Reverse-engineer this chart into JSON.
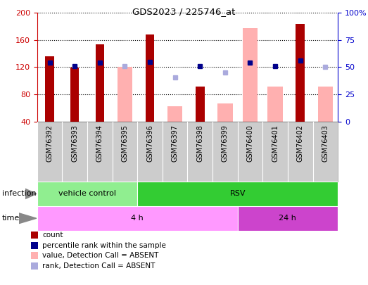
{
  "title": "GDS2023 / 225746_at",
  "samples": [
    "GSM76392",
    "GSM76393",
    "GSM76394",
    "GSM76395",
    "GSM76396",
    "GSM76397",
    "GSM76398",
    "GSM76399",
    "GSM76400",
    "GSM76401",
    "GSM76402",
    "GSM76403"
  ],
  "count_values": [
    136,
    119,
    153,
    null,
    168,
    null,
    91,
    null,
    null,
    null,
    183,
    null
  ],
  "absent_value_bars": [
    null,
    null,
    null,
    120,
    null,
    63,
    null,
    67,
    177,
    92,
    null,
    92
  ],
  "percentile_rank": [
    127,
    121,
    127,
    null,
    128,
    null,
    121,
    null,
    127,
    121,
    130,
    null
  ],
  "absent_rank": [
    null,
    null,
    null,
    121,
    null,
    105,
    null,
    112,
    null,
    null,
    null,
    120
  ],
  "ylim_left": [
    40,
    200
  ],
  "ylim_right": [
    0,
    100
  ],
  "yticks_left": [
    40,
    80,
    120,
    160,
    200
  ],
  "yticks_right": [
    0,
    25,
    50,
    75,
    100
  ],
  "infection_groups": [
    {
      "label": "vehicle control",
      "start": 0,
      "end": 4,
      "color": "#90ee90"
    },
    {
      "label": "RSV",
      "start": 4,
      "end": 12,
      "color": "#33cc33"
    }
  ],
  "time_groups": [
    {
      "label": "4 h",
      "start": 0,
      "end": 8,
      "color": "#ff99ff"
    },
    {
      "label": "24 h",
      "start": 8,
      "end": 12,
      "color": "#cc44cc"
    }
  ],
  "count_color": "#aa0000",
  "absent_value_color": "#ffb0b0",
  "percentile_color": "#00008b",
  "absent_rank_color": "#aaaadd",
  "grid_color": "black",
  "left_axis_color": "#cc0000",
  "right_axis_color": "#0000cc",
  "xticklabel_bg_color": "#cccccc",
  "legend_items": [
    {
      "label": "count",
      "color": "#aa0000"
    },
    {
      "label": "percentile rank within the sample",
      "color": "#00008b"
    },
    {
      "label": "value, Detection Call = ABSENT",
      "color": "#ffb0b0"
    },
    {
      "label": "rank, Detection Call = ABSENT",
      "color": "#aaaadd"
    }
  ]
}
